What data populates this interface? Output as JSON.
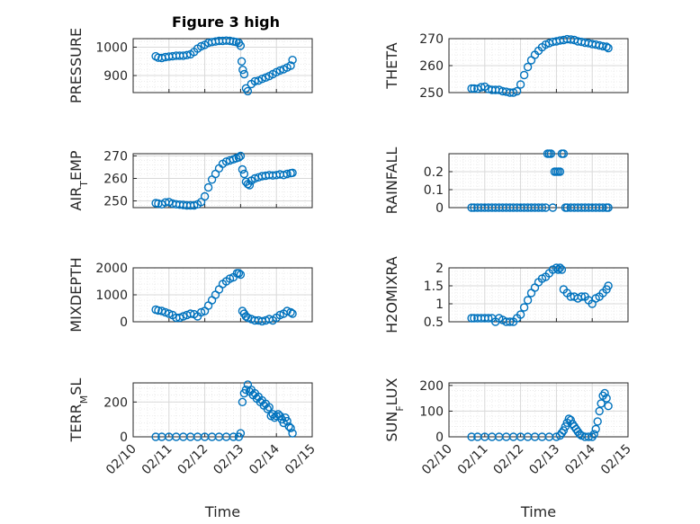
{
  "figure_title": "Figure 3 high",
  "colors": {
    "marker": "#0072BD",
    "axis": "#262626",
    "grid": "#d9d9d9"
  },
  "chart_data": [
    {
      "type": "scatter",
      "title": "Figure 3 high",
      "ylabel": "PRESSURE",
      "xlabel": "",
      "xlim": [
        "02/10",
        "02/15"
      ],
      "ylim": [
        840,
        1030
      ],
      "yticks": [
        900,
        1000
      ],
      "series": [
        {
          "x_day_of_feb": [
            10.63,
            10.7,
            10.8,
            10.9,
            11.0,
            11.1,
            11.2,
            11.3,
            11.4,
            11.5,
            11.6,
            11.7,
            11.8,
            11.9,
            12.0,
            12.1,
            12.2,
            12.3,
            12.4,
            12.5,
            12.6,
            12.7,
            12.8,
            12.88,
            12.95,
            13.0,
            13.03,
            13.06,
            13.1,
            13.15,
            13.2,
            13.3,
            13.4,
            13.5,
            13.6,
            13.7,
            13.8,
            13.9,
            14.0,
            14.1,
            14.2,
            14.3,
            14.4,
            14.45
          ],
          "y": [
            968,
            963,
            962,
            965,
            967,
            968,
            970,
            970,
            970,
            972,
            975,
            983,
            995,
            1003,
            1008,
            1015,
            1018,
            1020,
            1022,
            1022,
            1023,
            1022,
            1020,
            1018,
            1015,
            1005,
            950,
            920,
            905,
            855,
            845,
            870,
            880,
            882,
            888,
            893,
            898,
            905,
            912,
            918,
            922,
            928,
            935,
            955
          ]
        }
      ]
    },
    {
      "type": "scatter",
      "ylabel": "THETA",
      "xlabel": "",
      "xlim": [
        "02/10",
        "02/15"
      ],
      "ylim": [
        250,
        270
      ],
      "yticks": [
        250,
        260,
        270
      ],
      "series": [
        {
          "x_day_of_feb": [
            10.63,
            10.7,
            10.8,
            10.9,
            11.0,
            11.1,
            11.2,
            11.3,
            11.4,
            11.5,
            11.6,
            11.7,
            11.8,
            11.9,
            12.0,
            12.1,
            12.2,
            12.3,
            12.4,
            12.5,
            12.6,
            12.7,
            12.8,
            12.9,
            13.0,
            13.1,
            13.2,
            13.3,
            13.4,
            13.5,
            13.6,
            13.7,
            13.8,
            13.9,
            14.0,
            14.1,
            14.2,
            14.3,
            14.4,
            14.45
          ],
          "y": [
            251.5,
            251.5,
            251.4,
            252.0,
            252.2,
            251.3,
            251.0,
            251.0,
            251.0,
            250.5,
            250.3,
            250.0,
            250.0,
            250.5,
            253.0,
            256.5,
            259.5,
            262.0,
            264.0,
            265.5,
            266.8,
            267.8,
            268.3,
            268.8,
            269.0,
            269.3,
            269.5,
            269.8,
            269.7,
            269.5,
            269.0,
            268.8,
            268.5,
            268.3,
            268.0,
            267.8,
            267.5,
            267.2,
            267.0,
            266.5
          ]
        }
      ]
    },
    {
      "type": "scatter",
      "ylabel": "AIR_TEMP",
      "xlabel": "",
      "xlim": [
        "02/10",
        "02/15"
      ],
      "ylim": [
        247,
        271
      ],
      "yticks": [
        250,
        260,
        270
      ],
      "series": [
        {
          "x_day_of_feb": [
            10.63,
            10.7,
            10.8,
            10.9,
            11.0,
            11.1,
            11.2,
            11.3,
            11.4,
            11.5,
            11.6,
            11.7,
            11.8,
            11.9,
            12.0,
            12.1,
            12.2,
            12.3,
            12.4,
            12.5,
            12.6,
            12.7,
            12.8,
            12.88,
            12.95,
            13.0,
            13.05,
            13.1,
            13.15,
            13.2,
            13.25,
            13.3,
            13.4,
            13.5,
            13.6,
            13.7,
            13.8,
            13.9,
            14.0,
            14.1,
            14.2,
            14.3,
            14.4,
            14.45
          ],
          "y": [
            249.0,
            248.8,
            248.5,
            249.3,
            249.5,
            248.8,
            248.5,
            248.3,
            248.2,
            248.0,
            248.0,
            248.0,
            248.5,
            249.5,
            252.0,
            256.0,
            259.5,
            262.0,
            264.5,
            266.5,
            267.5,
            268.0,
            268.5,
            269.0,
            269.3,
            270.0,
            264.0,
            262.0,
            258.5,
            257.5,
            257.0,
            259.0,
            260.0,
            260.5,
            261.0,
            261.2,
            261.5,
            261.3,
            261.5,
            261.8,
            261.5,
            262.0,
            262.3,
            262.5
          ]
        }
      ]
    },
    {
      "type": "scatter",
      "ylabel": "RAINFALL",
      "xlabel": "",
      "xlim": [
        "02/10",
        "02/15"
      ],
      "ylim": [
        0,
        0.3
      ],
      "yticks": [
        0,
        0.1,
        0.2
      ],
      "series": [
        {
          "x_day_of_feb": [
            10.63,
            10.7,
            10.8,
            10.9,
            11.0,
            11.1,
            11.2,
            11.3,
            11.4,
            11.5,
            11.6,
            11.7,
            11.8,
            11.9,
            12.0,
            12.1,
            12.2,
            12.3,
            12.4,
            12.5,
            12.6,
            12.7,
            12.75,
            12.8,
            12.85,
            12.9,
            12.95,
            13.0,
            13.05,
            13.1,
            13.15,
            13.2,
            13.25,
            13.3,
            13.4,
            13.5,
            13.6,
            13.7,
            13.8,
            13.9,
            14.0,
            14.1,
            14.2,
            14.3,
            14.4,
            14.45
          ],
          "y": [
            0,
            0,
            0,
            0,
            0,
            0,
            0,
            0,
            0,
            0,
            0,
            0,
            0,
            0,
            0,
            0,
            0,
            0,
            0,
            0,
            0,
            0,
            0.3,
            0.3,
            0.3,
            0,
            0.2,
            0.2,
            0.2,
            0.2,
            0.3,
            0.3,
            0,
            0,
            0,
            0,
            0,
            0,
            0,
            0,
            0,
            0,
            0,
            0,
            0,
            0
          ]
        }
      ]
    },
    {
      "type": "scatter",
      "ylabel": "MIXDEPTH",
      "xlabel": "",
      "xlim": [
        "02/10",
        "02/15"
      ],
      "ylim": [
        0,
        2000
      ],
      "yticks": [
        0,
        1000,
        2000
      ],
      "series": [
        {
          "x_day_of_feb": [
            10.63,
            10.7,
            10.8,
            10.9,
            11.0,
            11.1,
            11.2,
            11.3,
            11.4,
            11.5,
            11.6,
            11.7,
            11.8,
            11.9,
            12.0,
            12.1,
            12.2,
            12.3,
            12.4,
            12.5,
            12.6,
            12.7,
            12.8,
            12.9,
            12.95,
            13.0,
            13.05,
            13.1,
            13.15,
            13.2,
            13.3,
            13.4,
            13.5,
            13.6,
            13.7,
            13.8,
            13.9,
            14.0,
            14.1,
            14.2,
            14.3,
            14.4,
            14.45
          ],
          "y": [
            450,
            420,
            400,
            350,
            300,
            250,
            150,
            150,
            200,
            250,
            300,
            280,
            200,
            350,
            400,
            600,
            800,
            1000,
            1200,
            1400,
            1500,
            1600,
            1650,
            1800,
            1800,
            1750,
            400,
            300,
            200,
            150,
            100,
            50,
            50,
            20,
            50,
            100,
            50,
            150,
            250,
            300,
            400,
            350,
            300
          ]
        }
      ]
    },
    {
      "type": "scatter",
      "ylabel": "H2OMIXRA",
      "xlabel": "",
      "xlim": [
        "02/10",
        "02/15"
      ],
      "ylim": [
        0.5,
        2.0
      ],
      "yticks": [
        0.5,
        1,
        1.5,
        2
      ],
      "series": [
        {
          "x_day_of_feb": [
            10.63,
            10.7,
            10.8,
            10.9,
            11.0,
            11.1,
            11.2,
            11.3,
            11.4,
            11.5,
            11.6,
            11.7,
            11.8,
            11.9,
            12.0,
            12.1,
            12.2,
            12.3,
            12.4,
            12.5,
            12.6,
            12.7,
            12.8,
            12.9,
            13.0,
            13.05,
            13.1,
            13.15,
            13.2,
            13.3,
            13.4,
            13.5,
            13.6,
            13.7,
            13.8,
            13.9,
            14.0,
            14.1,
            14.2,
            14.3,
            14.4,
            14.45
          ],
          "y": [
            0.6,
            0.6,
            0.6,
            0.6,
            0.6,
            0.6,
            0.6,
            0.5,
            0.6,
            0.55,
            0.5,
            0.5,
            0.5,
            0.6,
            0.7,
            0.9,
            1.1,
            1.3,
            1.45,
            1.6,
            1.7,
            1.75,
            1.85,
            1.95,
            2.0,
            1.95,
            2.0,
            1.95,
            1.4,
            1.3,
            1.2,
            1.2,
            1.15,
            1.2,
            1.2,
            1.1,
            1.0,
            1.15,
            1.2,
            1.3,
            1.4,
            1.5
          ]
        }
      ]
    },
    {
      "type": "scatter",
      "ylabel": "TERR_MSL",
      "xlabel": "Time",
      "xlim": [
        "02/10",
        "02/15"
      ],
      "ylim": [
        0,
        310
      ],
      "yticks": [
        0,
        200
      ],
      "xticks": [
        "02/10",
        "02/11",
        "02/12",
        "02/13",
        "02/14",
        "02/15"
      ],
      "series": [
        {
          "x_day_of_feb": [
            10.63,
            10.8,
            11.0,
            11.2,
            11.4,
            11.6,
            11.8,
            12.0,
            12.2,
            12.4,
            12.6,
            12.8,
            12.95,
            13.0,
            13.05,
            13.1,
            13.15,
            13.2,
            13.25,
            13.3,
            13.35,
            13.4,
            13.45,
            13.5,
            13.55,
            13.6,
            13.65,
            13.7,
            13.75,
            13.8,
            13.85,
            13.9,
            13.95,
            14.0,
            14.05,
            14.1,
            14.15,
            14.2,
            14.25,
            14.3,
            14.35,
            14.4,
            14.45
          ],
          "y": [
            0,
            0,
            0,
            0,
            0,
            0,
            0,
            0,
            0,
            0,
            0,
            0,
            0,
            20,
            200,
            250,
            270,
            300,
            260,
            270,
            240,
            250,
            220,
            230,
            200,
            210,
            180,
            190,
            160,
            170,
            120,
            130,
            110,
            120,
            130,
            120,
            100,
            80,
            110,
            90,
            60,
            50,
            20
          ]
        }
      ]
    },
    {
      "type": "scatter",
      "ylabel": "SUN_FLUX",
      "xlabel": "Time",
      "xlim": [
        "02/10",
        "02/15"
      ],
      "ylim": [
        0,
        210
      ],
      "yticks": [
        0,
        100,
        200
      ],
      "xticks": [
        "02/10",
        "02/11",
        "02/12",
        "02/13",
        "02/14",
        "02/15"
      ],
      "series": [
        {
          "x_day_of_feb": [
            10.63,
            10.8,
            11.0,
            11.2,
            11.4,
            11.6,
            11.8,
            12.0,
            12.2,
            12.4,
            12.6,
            12.8,
            13.0,
            13.1,
            13.15,
            13.2,
            13.25,
            13.3,
            13.35,
            13.4,
            13.45,
            13.5,
            13.55,
            13.6,
            13.65,
            13.7,
            13.8,
            13.9,
            14.0,
            14.05,
            14.1,
            14.15,
            14.2,
            14.25,
            14.3,
            14.35,
            14.4,
            14.45
          ],
          "y": [
            0,
            0,
            0,
            0,
            0,
            0,
            0,
            0,
            0,
            0,
            0,
            0,
            0,
            5,
            15,
            25,
            40,
            55,
            70,
            65,
            50,
            40,
            30,
            20,
            10,
            5,
            0,
            0,
            0,
            10,
            30,
            60,
            100,
            130,
            160,
            170,
            150,
            120
          ]
        }
      ]
    }
  ]
}
